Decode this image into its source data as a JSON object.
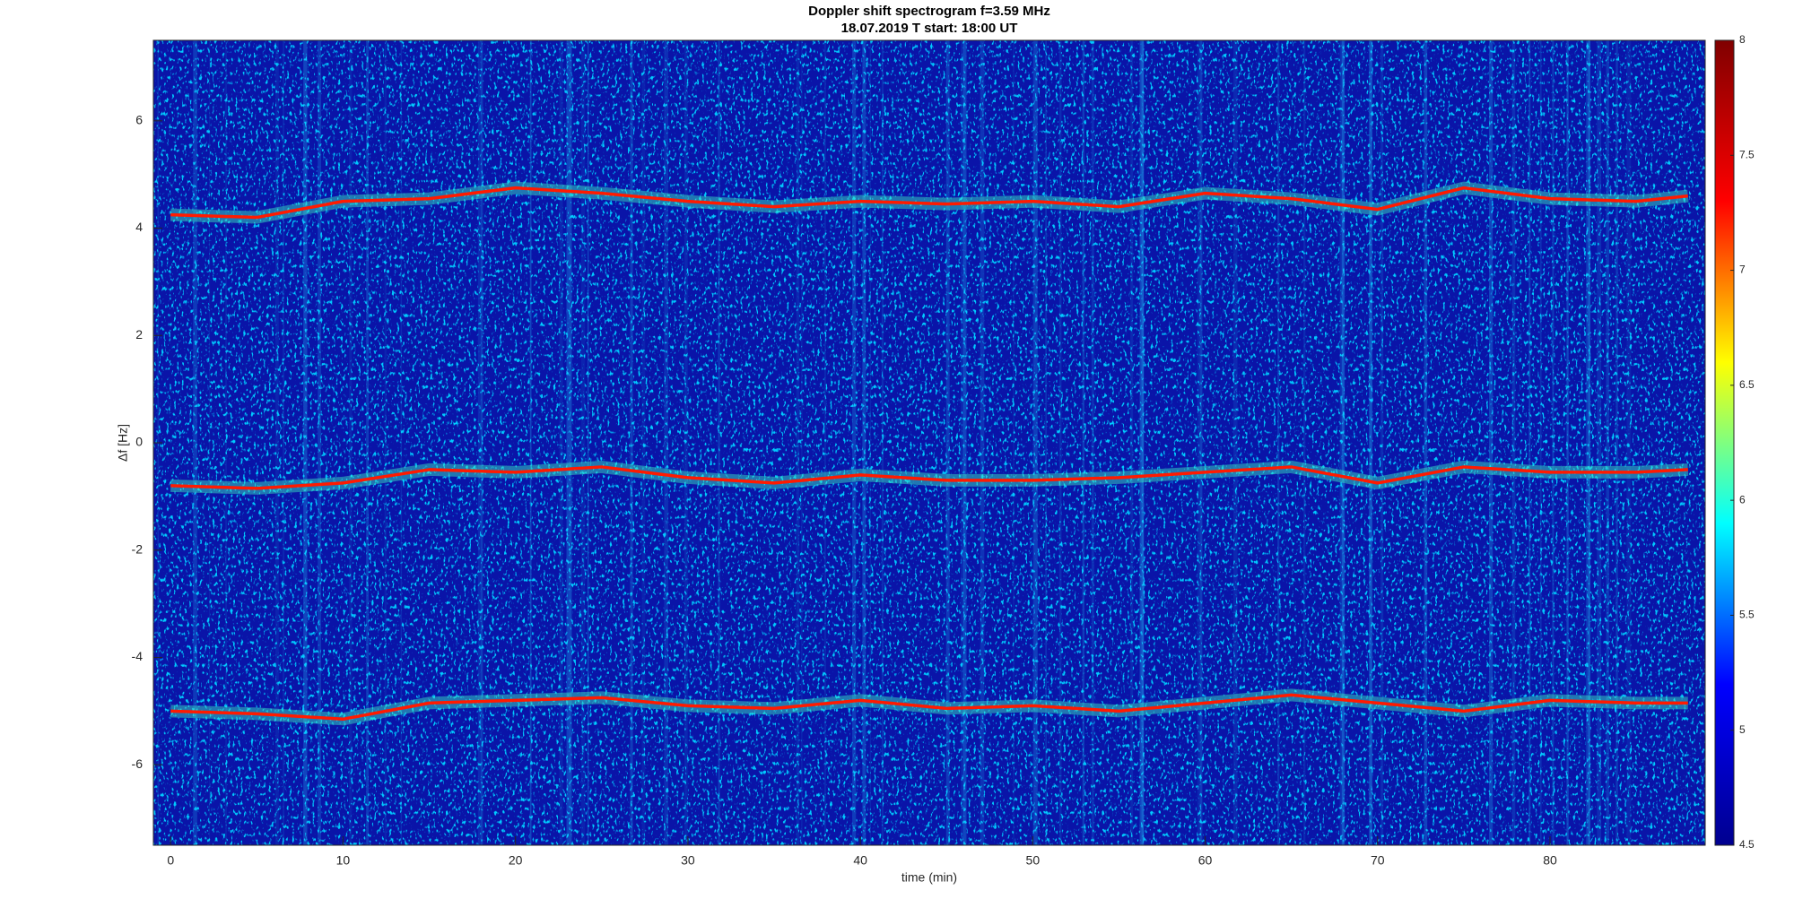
{
  "chart_data": {
    "type": "spectrogram",
    "title": "Doppler shift spectrogram f=3.59 MHz",
    "subtitle": "18.07.2019   T start: 18:00 UT",
    "xlabel": "time (min)",
    "ylabel": "Δf [Hz]",
    "xlim": [
      -1,
      89
    ],
    "xticks": [
      0,
      10,
      20,
      30,
      40,
      50,
      60,
      70,
      80
    ],
    "ylim": [
      -7.5,
      7.5
    ],
    "yticks": [
      -6,
      -4,
      -2,
      0,
      2,
      4,
      6
    ],
    "x": [
      0,
      5,
      10,
      15,
      20,
      25,
      30,
      35,
      40,
      45,
      50,
      55,
      60,
      65,
      70,
      75,
      80,
      85,
      88
    ],
    "series": [
      {
        "color": "#ff1a00",
        "values": [
          4.25,
          4.2,
          4.5,
          4.55,
          4.75,
          4.65,
          4.5,
          4.4,
          4.5,
          4.45,
          4.5,
          4.4,
          4.65,
          4.55,
          4.35,
          4.75,
          4.55,
          4.5,
          4.6
        ]
      },
      {
        "color": "#ff1a00",
        "values": [
          -0.8,
          -0.85,
          -0.75,
          -0.5,
          -0.55,
          -0.45,
          -0.65,
          -0.75,
          -0.6,
          -0.7,
          -0.7,
          -0.65,
          -0.55,
          -0.45,
          -0.75,
          -0.45,
          -0.55,
          -0.55,
          -0.5
        ]
      },
      {
        "color": "#ff1a00",
        "values": [
          -5.0,
          -5.05,
          -5.15,
          -4.85,
          -4.8,
          -4.75,
          -4.9,
          -4.95,
          -4.8,
          -4.95,
          -4.9,
          -5.0,
          -4.85,
          -4.7,
          -4.85,
          -5.0,
          -4.8,
          -4.85,
          -4.85
        ]
      }
    ],
    "colorbar": {
      "clim": [
        4.5,
        8
      ],
      "ticks": [
        4.5,
        5,
        5.5,
        6,
        6.5,
        7,
        7.5,
        8
      ],
      "colors": [
        "#00008f",
        "#0000ff",
        "#00ffff",
        "#ffff00",
        "#ff0000",
        "#800000"
      ]
    }
  }
}
